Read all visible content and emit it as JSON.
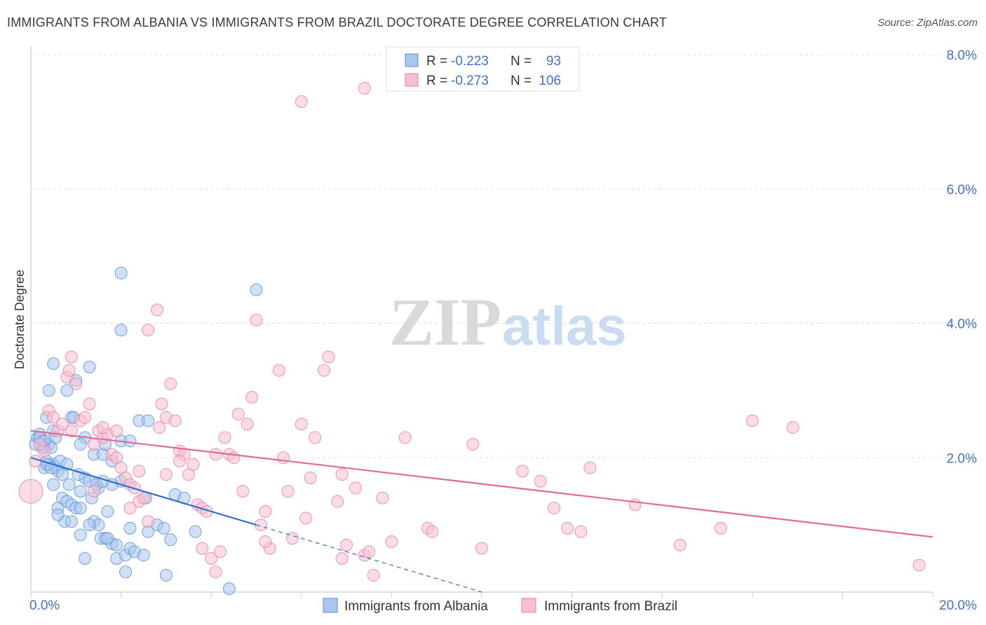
{
  "chart_data": {
    "type": "scatter",
    "title": "IMMIGRANTS FROM ALBANIA VS IMMIGRANTS FROM BRAZIL DOCTORATE DEGREE CORRELATION CHART",
    "source": "Source: ZipAtlas.com",
    "xlabel": "",
    "ylabel": "Doctorate Degree",
    "xlim": [
      0,
      20
    ],
    "ylim": [
      0,
      8.0
    ],
    "x_tick_labels": [
      "0.0%",
      "20.0%"
    ],
    "y_ticks": [
      2.0,
      4.0,
      6.0,
      8.0
    ],
    "y_tick_labels": [
      "2.0%",
      "4.0%",
      "6.0%",
      "8.0%"
    ],
    "grid": true,
    "watermark": "ZIPatlas",
    "legend_position": "top-center",
    "colors": {
      "albania": "#5b8fd6",
      "albania_fill": "#a9c6ec",
      "albania_line": "#2f6fcd",
      "brazil": "#e87ea4",
      "brazil_fill": "#f5c0d2",
      "brazil_line": "#e06b95",
      "tick_label": "#4472c4"
    },
    "stats": [
      {
        "series": "Immigrants from Albania",
        "r_label": "R = ",
        "r": "-0.223",
        "n_label": "N = ",
        "n": "93"
      },
      {
        "series": "Immigrants from Brazil",
        "r_label": "R = ",
        "r": "-0.273",
        "n_label": "N = ",
        "n": "106"
      }
    ],
    "series": [
      {
        "name": "Immigrants from Albania",
        "trend": {
          "x0": 0,
          "y0": 2.0,
          "x1": 5.0,
          "y1": 1.0,
          "dash_to_x": 10.0,
          "dash_to_y": 0.0
        },
        "points": [
          [
            0.1,
            2.2
          ],
          [
            0.15,
            2.3
          ],
          [
            0.2,
            2.35
          ],
          [
            0.25,
            2.25
          ],
          [
            0.3,
            2.15
          ],
          [
            0.35,
            2.6
          ],
          [
            0.4,
            2.2
          ],
          [
            0.5,
            2.4
          ],
          [
            0.3,
            1.85
          ],
          [
            0.4,
            1.9
          ],
          [
            0.5,
            1.9
          ],
          [
            0.55,
            1.85
          ],
          [
            0.6,
            1.8
          ],
          [
            0.45,
            2.15
          ],
          [
            0.7,
            1.75
          ],
          [
            0.35,
            1.95
          ],
          [
            0.5,
            1.6
          ],
          [
            0.6,
            1.25
          ],
          [
            0.7,
            1.4
          ],
          [
            0.8,
            1.35
          ],
          [
            0.9,
            1.3
          ],
          [
            1.0,
            1.25
          ],
          [
            1.1,
            1.25
          ],
          [
            0.75,
            1.05
          ],
          [
            0.9,
            1.05
          ],
          [
            1.1,
            1.5
          ],
          [
            1.2,
            1.7
          ],
          [
            1.3,
            1.65
          ],
          [
            1.5,
            1.55
          ],
          [
            1.45,
            1.6
          ],
          [
            1.4,
            1.05
          ],
          [
            1.5,
            1.0
          ],
          [
            1.55,
            0.8
          ],
          [
            1.65,
            0.8
          ],
          [
            1.8,
            0.72
          ],
          [
            1.9,
            0.7
          ],
          [
            1.9,
            0.5
          ],
          [
            2.1,
            0.55
          ],
          [
            2.1,
            0.3
          ],
          [
            2.2,
            0.65
          ],
          [
            2.3,
            0.6
          ],
          [
            2.5,
            0.55
          ],
          [
            2.6,
            0.9
          ],
          [
            2.8,
            1.0
          ],
          [
            2.95,
            0.95
          ],
          [
            3.0,
            0.25
          ],
          [
            3.1,
            0.78
          ],
          [
            3.2,
            1.45
          ],
          [
            3.4,
            1.4
          ],
          [
            3.65,
            0.9
          ],
          [
            1.2,
            2.3
          ],
          [
            1.4,
            2.05
          ],
          [
            1.6,
            2.05
          ],
          [
            1.8,
            1.95
          ],
          [
            2.0,
            2.25
          ],
          [
            2.2,
            2.25
          ],
          [
            2.4,
            2.55
          ],
          [
            2.6,
            2.55
          ],
          [
            2.0,
            1.65
          ],
          [
            1.7,
            1.2
          ],
          [
            0.5,
            3.4
          ],
          [
            1.3,
            3.35
          ],
          [
            1.0,
            3.15
          ],
          [
            0.8,
            3.0
          ],
          [
            0.4,
            3.0
          ],
          [
            2.0,
            4.75
          ],
          [
            2.0,
            3.9
          ],
          [
            5.0,
            4.5
          ],
          [
            1.1,
            2.2
          ],
          [
            0.9,
            2.6
          ],
          [
            1.2,
            0.5
          ],
          [
            1.3,
            1.0
          ],
          [
            1.7,
            0.8
          ],
          [
            1.8,
            1.6
          ],
          [
            0.6,
            1.15
          ],
          [
            0.85,
            1.6
          ],
          [
            0.95,
            2.6
          ],
          [
            1.65,
            2.2
          ],
          [
            2.55,
            1.4
          ],
          [
            4.4,
            0.05
          ],
          [
            0.2,
            2.3
          ],
          [
            0.25,
            2.15
          ],
          [
            0.3,
            2.25
          ],
          [
            0.35,
            1.9
          ],
          [
            0.45,
            1.85
          ],
          [
            0.55,
            2.3
          ],
          [
            0.65,
            1.95
          ],
          [
            0.8,
            1.9
          ],
          [
            1.05,
            1.75
          ],
          [
            1.35,
            1.4
          ],
          [
            1.6,
            1.65
          ],
          [
            2.2,
            0.95
          ],
          [
            1.1,
            0.85
          ]
        ]
      },
      {
        "name": "Immigrants from Brazil",
        "trend": {
          "x0": 0,
          "y0": 2.4,
          "x1": 20.0,
          "y1": 0.82
        },
        "points": [
          [
            0.0,
            1.5
          ],
          [
            0.1,
            1.95
          ],
          [
            0.3,
            2.1
          ],
          [
            0.4,
            2.7
          ],
          [
            0.5,
            2.6
          ],
          [
            0.6,
            2.4
          ],
          [
            0.8,
            3.2
          ],
          [
            0.85,
            3.3
          ],
          [
            0.9,
            3.5
          ],
          [
            1.0,
            3.1
          ],
          [
            1.1,
            2.55
          ],
          [
            1.2,
            2.6
          ],
          [
            1.3,
            2.8
          ],
          [
            1.4,
            2.2
          ],
          [
            1.5,
            2.4
          ],
          [
            1.6,
            2.3
          ],
          [
            1.7,
            2.35
          ],
          [
            1.8,
            2.05
          ],
          [
            1.9,
            2.0
          ],
          [
            2.0,
            1.85
          ],
          [
            2.1,
            1.7
          ],
          [
            2.2,
            1.6
          ],
          [
            2.3,
            1.55
          ],
          [
            2.4,
            1.35
          ],
          [
            2.5,
            1.4
          ],
          [
            2.6,
            3.9
          ],
          [
            2.8,
            4.2
          ],
          [
            2.9,
            2.8
          ],
          [
            3.0,
            2.6
          ],
          [
            3.1,
            3.1
          ],
          [
            3.2,
            2.55
          ],
          [
            3.3,
            2.1
          ],
          [
            3.4,
            2.05
          ],
          [
            3.5,
            1.75
          ],
          [
            3.6,
            1.9
          ],
          [
            3.7,
            1.3
          ],
          [
            3.8,
            1.25
          ],
          [
            3.9,
            1.2
          ],
          [
            4.0,
            0.5
          ],
          [
            4.1,
            0.3
          ],
          [
            4.2,
            0.6
          ],
          [
            4.3,
            2.3
          ],
          [
            4.4,
            2.05
          ],
          [
            4.5,
            2.0
          ],
          [
            4.6,
            2.65
          ],
          [
            4.7,
            1.5
          ],
          [
            4.8,
            2.5
          ],
          [
            4.9,
            2.9
          ],
          [
            5.0,
            4.05
          ],
          [
            5.1,
            1.0
          ],
          [
            5.2,
            1.2
          ],
          [
            5.3,
            0.65
          ],
          [
            5.5,
            3.3
          ],
          [
            5.6,
            2.0
          ],
          [
            5.7,
            1.5
          ],
          [
            5.8,
            0.8
          ],
          [
            6.0,
            2.5
          ],
          [
            6.1,
            1.1
          ],
          [
            6.2,
            1.7
          ],
          [
            6.3,
            2.3
          ],
          [
            6.5,
            3.3
          ],
          [
            6.6,
            3.5
          ],
          [
            6.8,
            1.35
          ],
          [
            6.9,
            1.75
          ],
          [
            7.0,
            0.7
          ],
          [
            7.2,
            1.55
          ],
          [
            7.4,
            0.55
          ],
          [
            7.5,
            0.6
          ],
          [
            7.6,
            0.25
          ],
          [
            7.8,
            1.4
          ],
          [
            8.0,
            0.75
          ],
          [
            8.3,
            2.3
          ],
          [
            8.8,
            0.95
          ],
          [
            9.8,
            2.2
          ],
          [
            10.0,
            0.65
          ],
          [
            10.9,
            1.8
          ],
          [
            11.3,
            1.65
          ],
          [
            11.6,
            1.25
          ],
          [
            11.9,
            0.95
          ],
          [
            12.2,
            0.9
          ],
          [
            12.4,
            1.85
          ],
          [
            13.4,
            1.3
          ],
          [
            14.4,
            0.7
          ],
          [
            15.3,
            0.95
          ],
          [
            16.0,
            2.55
          ],
          [
            16.9,
            2.45
          ],
          [
            19.7,
            0.4
          ],
          [
            6.0,
            7.3
          ],
          [
            7.4,
            7.5
          ],
          [
            3.0,
            1.75
          ],
          [
            2.2,
            1.25
          ],
          [
            1.6,
            2.45
          ],
          [
            2.4,
            1.8
          ],
          [
            3.3,
            1.95
          ],
          [
            0.7,
            2.5
          ],
          [
            1.9,
            2.4
          ],
          [
            4.1,
            2.05
          ],
          [
            5.2,
            0.75
          ],
          [
            6.9,
            0.5
          ],
          [
            8.9,
            0.9
          ],
          [
            3.8,
            0.65
          ],
          [
            2.6,
            1.05
          ],
          [
            1.4,
            1.5
          ],
          [
            0.9,
            2.4
          ],
          [
            2.85,
            2.45
          ],
          [
            0.2,
            2.2
          ]
        ]
      }
    ],
    "legend_bottom": [
      "Immigrants from Albania",
      "Immigrants from Brazil"
    ]
  }
}
